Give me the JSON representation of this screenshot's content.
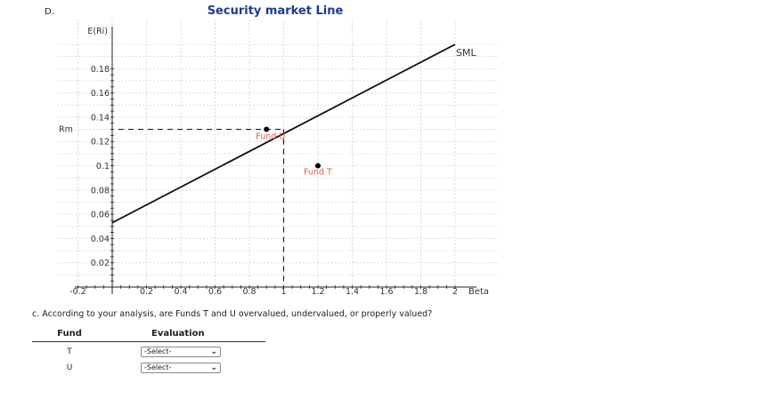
{
  "part_label": "D.",
  "chart_data": {
    "type": "line",
    "title": "Security market Line",
    "ylabel": "E(Ri)",
    "xlabel": "Beta",
    "xlim": [
      -0.2,
      2
    ],
    "ylim": [
      0,
      0.2
    ],
    "x_ticks": [
      -0.2,
      0.2,
      0.4,
      0.6,
      0.8,
      1,
      1.2,
      1.4,
      1.6,
      1.8,
      2
    ],
    "y_ticks": [
      0.02,
      0.04,
      0.06,
      0.08,
      0.1,
      0.12,
      0.14,
      0.16,
      0.18
    ],
    "grid": true,
    "sml": {
      "name": "SML",
      "x": [
        0,
        2
      ],
      "y": [
        0.053,
        0.2
      ]
    },
    "rm": {
      "label": "Rm",
      "y": 0.13,
      "beta": 1
    },
    "points": [
      {
        "name": "Fund U",
        "label": "Fund U",
        "x": 0.9,
        "y": 0.13
      },
      {
        "name": "Fund T",
        "label": "Fund T",
        "x": 1.2,
        "y": 0.1
      }
    ]
  },
  "question": "c. According to your analysis, are Funds T and U overvalued, undervalued, or properly valued?",
  "table": {
    "headers": {
      "fund": "Fund",
      "evaluation": "Evaluation"
    },
    "rows": [
      {
        "fund": "T",
        "evaluation": "-Select-"
      },
      {
        "fund": "U",
        "evaluation": "-Select-"
      }
    ]
  }
}
